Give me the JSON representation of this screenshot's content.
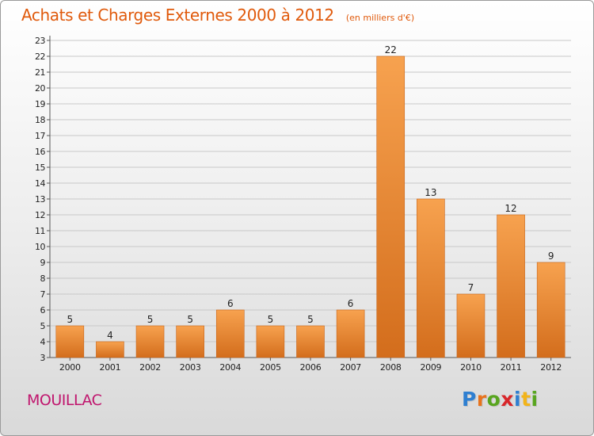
{
  "header": {
    "title": "Achats et Charges Externes 2000 à 2012",
    "unit": "(en milliers d'€)"
  },
  "footer": {
    "commune": "MOUILLAC",
    "brand": "Proxiti",
    "brand_letters": [
      {
        "char": "P",
        "color": "#2e7fd1"
      },
      {
        "char": "r",
        "color": "#e8731d"
      },
      {
        "char": "o",
        "color": "#58a51f"
      },
      {
        "char": "x",
        "color": "#d8262a"
      },
      {
        "char": "i",
        "color": "#2e7fd1"
      },
      {
        "char": "t",
        "color": "#f2b41a"
      },
      {
        "char": "i",
        "color": "#58a51f"
      }
    ]
  },
  "colors": {
    "bar_light": "#f7a24f",
    "bar_dark": "#d36d1c",
    "title": "#e05a0c",
    "commune": "#c0166e",
    "grid": "#c8c8c8",
    "axis_text": "#222222"
  },
  "chart_data": {
    "type": "bar",
    "categories": [
      "2000",
      "2001",
      "2002",
      "2003",
      "2004",
      "2005",
      "2006",
      "2007",
      "2008",
      "2009",
      "2010",
      "2011",
      "2012"
    ],
    "values": [
      5,
      4,
      5,
      5,
      6,
      5,
      5,
      6,
      22,
      13,
      7,
      12,
      9
    ],
    "title": "Achats et Charges Externes 2000 à 2012",
    "unit": "(en milliers d'€)",
    "xlabel": "",
    "ylabel": "",
    "ylim": [
      3,
      23
    ],
    "yticks": [
      3,
      4,
      5,
      6,
      7,
      8,
      9,
      10,
      11,
      12,
      13,
      14,
      15,
      16,
      17,
      18,
      19,
      20,
      21,
      22,
      23
    ],
    "grid": true,
    "legend": "none",
    "data_labels": true
  }
}
